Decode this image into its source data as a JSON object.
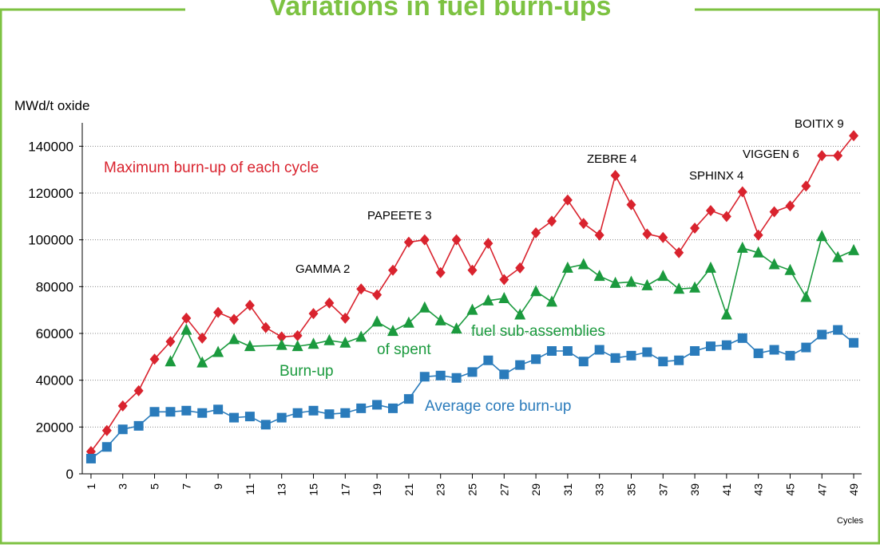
{
  "chart_data": {
    "type": "line",
    "title": "Variations in fuel burn-ups",
    "ylabel": "MWd/t oxide",
    "xlabel": "Cycles",
    "x": [
      1,
      2,
      3,
      4,
      5,
      6,
      7,
      8,
      9,
      10,
      11,
      12,
      13,
      14,
      15,
      16,
      17,
      18,
      19,
      20,
      21,
      22,
      23,
      24,
      25,
      26,
      27,
      28,
      29,
      30,
      31,
      32,
      33,
      34,
      35,
      36,
      37,
      38,
      39,
      40,
      41,
      42,
      43,
      44,
      45,
      46,
      47,
      48,
      49
    ],
    "xlim": [
      0.5,
      49.5
    ],
    "xticks": [
      1,
      3,
      5,
      7,
      9,
      11,
      13,
      15,
      17,
      19,
      21,
      23,
      25,
      27,
      29,
      31,
      33,
      35,
      37,
      39,
      41,
      43,
      45,
      47,
      49
    ],
    "ylim": [
      0,
      150000
    ],
    "yticks": [
      0,
      20000,
      40000,
      60000,
      80000,
      100000,
      120000,
      140000
    ],
    "grid": true,
    "series": [
      {
        "name": "Maximum burn-up of each cycle",
        "color": "#d9232e",
        "marker": "diamond",
        "values": [
          9500,
          18500,
          29000,
          35500,
          49000,
          56500,
          66500,
          58000,
          69000,
          66000,
          72000,
          62500,
          58500,
          59000,
          68500,
          73000,
          66500,
          79000,
          76500,
          87000,
          99000,
          100000,
          86000,
          100000,
          87000,
          98500,
          83000,
          88000,
          103000,
          108000,
          117000,
          107000,
          102000,
          127500,
          115000,
          102500,
          101000,
          94500,
          105000,
          112500,
          110000,
          120500,
          102000,
          112000,
          114500,
          123000,
          136000,
          136000,
          144500
        ]
      },
      {
        "label_lines": [
          "Burn-up",
          "of spent",
          "fuel sub-assemblies"
        ],
        "color": "#1b9a3e",
        "marker": "triangle",
        "x": [
          6,
          7,
          8,
          9,
          10,
          11,
          13,
          14,
          15,
          16,
          17,
          18,
          19,
          20,
          21,
          22,
          23,
          24,
          25,
          26,
          27,
          28,
          29,
          30,
          31,
          32,
          33,
          34,
          35,
          36,
          37,
          38,
          39,
          40,
          41,
          42,
          43,
          44,
          45,
          46,
          47,
          48,
          49
        ],
        "values": [
          48000,
          61500,
          47500,
          52000,
          57500,
          54500,
          55000,
          54500,
          55500,
          57000,
          56000,
          58500,
          65000,
          61000,
          64500,
          71000,
          65500,
          62000,
          70000,
          74000,
          75000,
          68000,
          78000,
          73500,
          88000,
          89500,
          84500,
          81500,
          82000,
          80500,
          84500,
          79000,
          79500,
          88000,
          68000,
          96500,
          94500,
          89500,
          87000,
          75500,
          101500,
          92500,
          95500
        ]
      },
      {
        "name": "Average core burn-up",
        "color": "#2a7bbb",
        "marker": "square",
        "values": [
          6500,
          11500,
          19000,
          20500,
          26500,
          26500,
          27000,
          26000,
          27500,
          24000,
          24500,
          21000,
          24000,
          26000,
          27000,
          25500,
          26000,
          28000,
          29500,
          28000,
          32000,
          41500,
          42000,
          41000,
          43500,
          48500,
          42500,
          46500,
          49000,
          52500,
          52500,
          48000,
          53000,
          49500,
          50500,
          52000,
          48000,
          48500,
          52500,
          54500,
          55000,
          58000,
          51500,
          53000,
          50500,
          54000,
          59500,
          61500,
          56000
        ]
      }
    ],
    "annotations": [
      "GAMMA 2",
      "PAPEETE 3",
      "ZEBRE 4",
      "SPHINX 4",
      "VIGGEN 6",
      "BOITIX 9"
    ]
  }
}
